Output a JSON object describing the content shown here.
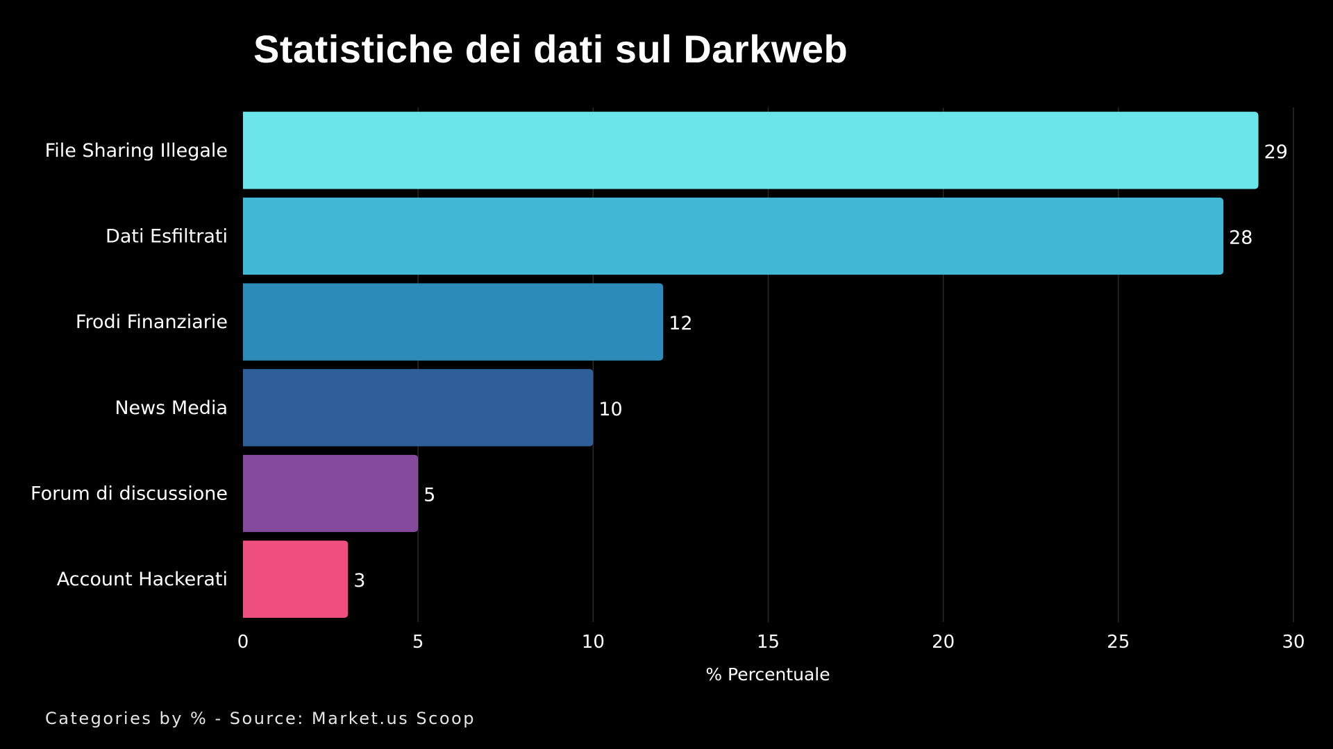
{
  "chart_data": {
    "type": "bar",
    "orientation": "horizontal",
    "title": "Statistiche dei dati sul Darkweb",
    "xlabel": "% Percentuale",
    "ylabel": "",
    "categories": [
      "File Sharing Illegale",
      "Dati Esfiltrati",
      "Frodi Finanziarie",
      "News Media",
      "Forum di discussione",
      "Account Hackerati"
    ],
    "values": [
      29,
      28,
      12,
      10,
      5,
      3
    ],
    "colors": [
      "#6ce5e8",
      "#41b8d5",
      "#2d8bba",
      "#2f5f98",
      "#864a9c",
      "#ee4f7e"
    ],
    "xlim": [
      0,
      30
    ],
    "xticks": [
      0,
      5,
      10,
      15,
      20,
      25,
      30
    ],
    "grid": true,
    "legend": "none",
    "data_labels": true
  },
  "footer": {
    "source_text": "Categories by % - Source: Market.us Scoop"
  }
}
